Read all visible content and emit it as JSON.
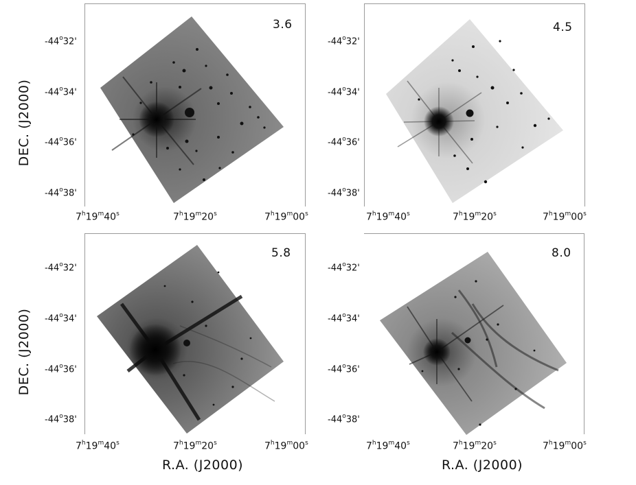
{
  "figure": {
    "panels": [
      {
        "band": "3.6",
        "tone": "dark"
      },
      {
        "band": "4.5",
        "tone": "light"
      },
      {
        "band": "5.8",
        "tone": "dark"
      },
      {
        "band": "8.0",
        "tone": "medium"
      }
    ],
    "dec_ticks": [
      {
        "deg": "-44",
        "min": "32'"
      },
      {
        "deg": "-44",
        "min": "34'"
      },
      {
        "deg": "-44",
        "min": "36'"
      },
      {
        "deg": "-44",
        "min": "38'"
      }
    ],
    "ra_ticks": [
      {
        "h": "7",
        "m": "19",
        "s": "40"
      },
      {
        "h": "7",
        "m": "19",
        "s": "20"
      },
      {
        "h": "7",
        "m": "19",
        "s": "00"
      }
    ],
    "units": {
      "deg": "o",
      "hour": "h",
      "minute": "m",
      "second": "s"
    },
    "axis": {
      "ylabel": "DEC.  (J2000)",
      "xlabel": "R.A.  (J2000)"
    }
  }
}
